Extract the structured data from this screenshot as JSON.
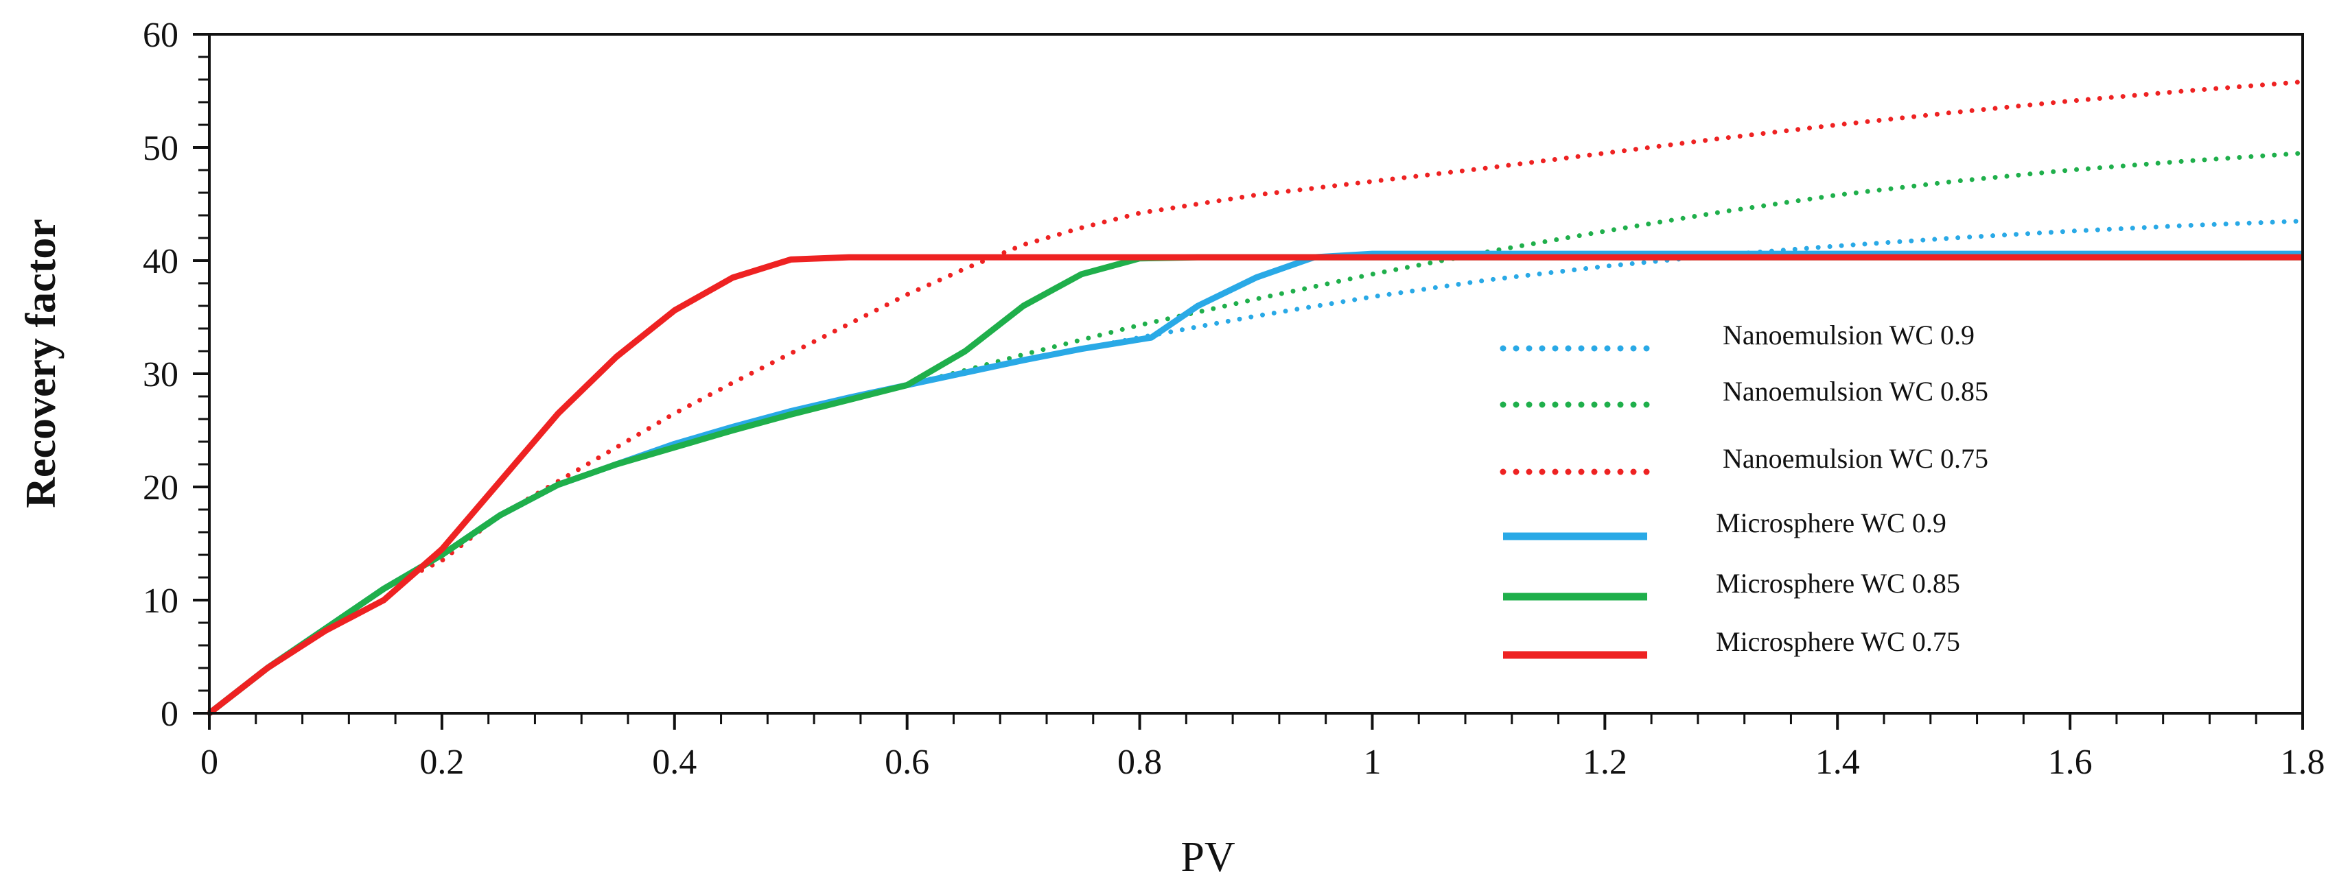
{
  "chart_data": {
    "type": "line",
    "title": "",
    "xlabel": "PV",
    "ylabel": "Recovery factor",
    "xlim": [
      0,
      1.8
    ],
    "ylim": [
      0,
      60
    ],
    "xticks": [
      "0",
      "0.2",
      "0.4",
      "0.6",
      "0.8",
      "1",
      "1.2",
      "1.4",
      "1.6",
      "1.8"
    ],
    "yticks": [
      "0",
      "10",
      "20",
      "30",
      "40",
      "50",
      "60"
    ],
    "grid": false,
    "legend_position": "lower-right",
    "series": [
      {
        "name": "Nanoemulsion WC 0.9",
        "style": "dotted",
        "color": "#29A9E6",
        "x": [
          0,
          0.05,
          0.1,
          0.15,
          0.2,
          0.25,
          0.3,
          0.35,
          0.4,
          0.45,
          0.5,
          0.55,
          0.6,
          0.65,
          0.7,
          0.75,
          0.8,
          0.9,
          1.0,
          1.1,
          1.2,
          1.3,
          1.4,
          1.5,
          1.6,
          1.7,
          1.8
        ],
        "y": [
          0,
          4,
          7.5,
          11,
          14,
          17.5,
          20.2,
          22,
          23.8,
          25.3,
          26.7,
          27.9,
          29,
          30.1,
          31.2,
          32.2,
          33.2,
          35.1,
          36.8,
          38.3,
          39.5,
          40.5,
          41.3,
          42,
          42.6,
          43.1,
          43.5
        ]
      },
      {
        "name": "Nanoemulsion WC 0.85",
        "style": "dotted",
        "color": "#1FAF4B",
        "x": [
          0,
          0.05,
          0.1,
          0.15,
          0.2,
          0.25,
          0.3,
          0.35,
          0.4,
          0.45,
          0.5,
          0.55,
          0.6,
          0.65,
          0.7,
          0.75,
          0.8,
          0.9,
          1.0,
          1.1,
          1.2,
          1.3,
          1.4,
          1.5,
          1.6,
          1.7,
          1.8
        ],
        "y": [
          0,
          4,
          7.5,
          11,
          14,
          17.5,
          20.2,
          22,
          23.8,
          25.3,
          26.7,
          27.9,
          29,
          30.3,
          31.7,
          33,
          34.3,
          36.6,
          38.8,
          40.8,
          42.6,
          44.3,
          45.8,
          47,
          48,
          48.8,
          49.5
        ]
      },
      {
        "name": "Nanoemulsion WC 0.75",
        "style": "dotted",
        "color": "#EE2222",
        "x": [
          0,
          0.05,
          0.1,
          0.15,
          0.2,
          0.25,
          0.3,
          0.35,
          0.4,
          0.45,
          0.5,
          0.55,
          0.6,
          0.65,
          0.7,
          0.75,
          0.8,
          0.85,
          0.9,
          1.0,
          1.1,
          1.2,
          1.3,
          1.4,
          1.5,
          1.6,
          1.7,
          1.8
        ],
        "y": [
          0,
          4,
          7.5,
          11,
          13.5,
          17.5,
          20.5,
          23.5,
          26.5,
          29.2,
          31.8,
          34.4,
          37,
          39.3,
          41.4,
          42.9,
          44.2,
          45,
          45.8,
          47,
          48.2,
          49.5,
          50.8,
          52,
          53.1,
          54.1,
          55,
          55.8
        ]
      },
      {
        "name": "Microsphere WC 0.9",
        "style": "solid",
        "color": "#29A9E6",
        "x": [
          0,
          0.05,
          0.1,
          0.15,
          0.2,
          0.25,
          0.3,
          0.35,
          0.4,
          0.45,
          0.5,
          0.55,
          0.6,
          0.65,
          0.7,
          0.75,
          0.81,
          0.85,
          0.9,
          0.95,
          1.0,
          1.2,
          1.4,
          1.6,
          1.8
        ],
        "y": [
          0,
          4,
          7.5,
          11,
          14,
          17.5,
          20.2,
          22,
          23.8,
          25.3,
          26.7,
          27.9,
          29,
          30.1,
          31.2,
          32.2,
          33.2,
          36,
          38.5,
          40.3,
          40.6,
          40.6,
          40.6,
          40.6,
          40.6
        ]
      },
      {
        "name": "Microsphere WC 0.85",
        "style": "solid",
        "color": "#1FAF4B",
        "x": [
          0,
          0.05,
          0.1,
          0.15,
          0.2,
          0.25,
          0.3,
          0.35,
          0.4,
          0.45,
          0.5,
          0.55,
          0.6,
          0.65,
          0.7,
          0.75,
          0.8,
          0.85,
          1.0,
          1.2,
          1.4,
          1.6,
          1.8
        ],
        "y": [
          0,
          4,
          7.5,
          11,
          14,
          17.5,
          20.2,
          22,
          23.5,
          25,
          26.4,
          27.7,
          29,
          32,
          36,
          38.8,
          40.2,
          40.3,
          40.3,
          40.3,
          40.3,
          40.3,
          40.3
        ]
      },
      {
        "name": "Microsphere WC 0.75",
        "style": "solid",
        "color": "#EE2222",
        "x": [
          0,
          0.05,
          0.1,
          0.15,
          0.2,
          0.25,
          0.3,
          0.35,
          0.4,
          0.45,
          0.5,
          0.55,
          0.6,
          0.8,
          1.0,
          1.2,
          1.4,
          1.6,
          1.8
        ],
        "y": [
          0,
          4,
          7.3,
          10,
          14.5,
          20.5,
          26.5,
          31.5,
          35.6,
          38.5,
          40.1,
          40.3,
          40.3,
          40.3,
          40.3,
          40.3,
          40.3,
          40.3,
          40.3
        ]
      }
    ]
  }
}
